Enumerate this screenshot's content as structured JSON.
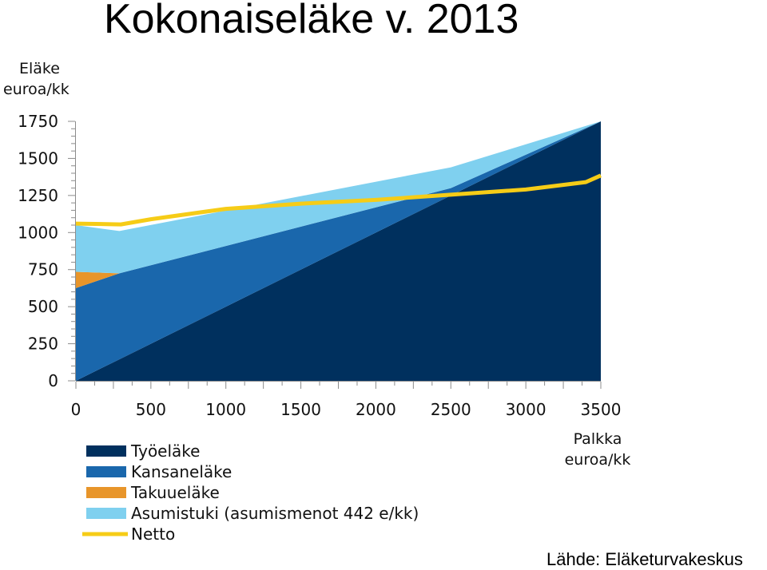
{
  "title": "Kokonaiseläke v. 2013",
  "source": "Lähde: Eläketurvakeskus",
  "chart_data": {
    "type": "area",
    "ylabel_lines": [
      "Eläke",
      "euroa/kk"
    ],
    "xlabel_lines": [
      "Palkka",
      "euroa/kk"
    ],
    "xlim": [
      0,
      3500
    ],
    "ylim": [
      0,
      1750
    ],
    "xticks": [
      0,
      500,
      1000,
      1500,
      2000,
      2500,
      3000,
      3500
    ],
    "yticks": [
      0,
      250,
      500,
      750,
      1000,
      1250,
      1500,
      1750
    ],
    "x": [
      0,
      290,
      2500,
      3500
    ],
    "series": [
      {
        "name": "Työeläke",
        "key": "tyoelake",
        "color": "#00305e",
        "values": [
          0,
          145,
          1250,
          1750
        ]
      },
      {
        "name": "Kansaneläke",
        "key": "kansanelake",
        "color": "#1a67ac",
        "values": [
          625,
          580,
          50,
          0
        ]
      },
      {
        "name": "Takuueläke",
        "key": "takuuelake",
        "color": "#e8952a",
        "values": [
          110,
          0,
          0,
          0
        ]
      },
      {
        "name": "Asumistuki (asumismenot 442 e/kk)",
        "key": "asumistuki",
        "color": "#7fd0ef",
        "values": [
          315,
          285,
          140,
          0
        ]
      }
    ],
    "netto": {
      "name": "Netto",
      "color": "#f6cc17",
      "x": [
        0,
        300,
        500,
        1000,
        1500,
        2000,
        2500,
        3000,
        3400,
        3500
      ],
      "values": [
        1060,
        1055,
        1090,
        1160,
        1195,
        1220,
        1255,
        1290,
        1340,
        1385
      ]
    },
    "legend": [
      "Työeläke",
      "Kansaneläke",
      "Takuueläke",
      "Asumistuki (asumismenot 442 e/kk)",
      "Netto"
    ],
    "legend_position": "bottom-left"
  }
}
